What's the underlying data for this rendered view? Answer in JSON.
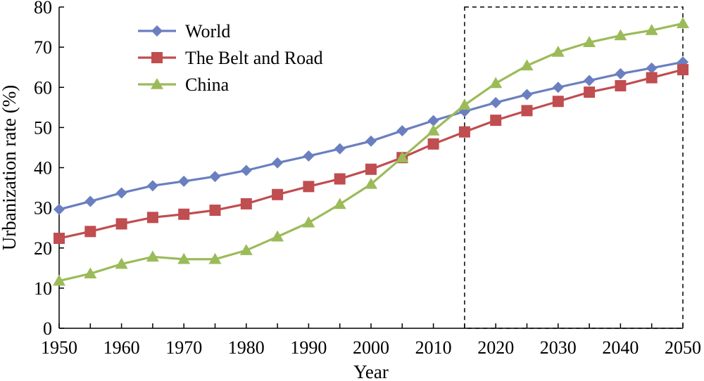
{
  "chart_data": {
    "type": "line",
    "title": "",
    "xlabel": "Year",
    "ylabel": "Urbanization rate (%)",
    "x": [
      1950,
      1955,
      1960,
      1965,
      1970,
      1975,
      1980,
      1985,
      1990,
      1995,
      2000,
      2005,
      2010,
      2015,
      2020,
      2025,
      2030,
      2035,
      2040,
      2045,
      2050
    ],
    "xlim": [
      1950,
      2050
    ],
    "ylim": [
      0,
      80
    ],
    "xticks": [
      1950,
      1960,
      1970,
      1980,
      1990,
      2000,
      2010,
      2020,
      2030,
      2040,
      2050
    ],
    "yticks": [
      0,
      10,
      20,
      30,
      40,
      50,
      60,
      70,
      80
    ],
    "grid": false,
    "legend_position": "top-left",
    "series": [
      {
        "name": "World",
        "color": "#6a7fc0",
        "marker": "diamond",
        "values": [
          29.6,
          31.6,
          33.7,
          35.5,
          36.6,
          37.8,
          39.3,
          41.2,
          42.9,
          44.7,
          46.6,
          49.2,
          51.7,
          54.0,
          56.2,
          58.2,
          60.0,
          61.7,
          63.4,
          64.8,
          66.3
        ]
      },
      {
        "name": "The Belt and Road",
        "color": "#c04d50",
        "marker": "square",
        "values": [
          22.4,
          24.1,
          26.0,
          27.6,
          28.4,
          29.4,
          31.0,
          33.3,
          35.3,
          37.2,
          39.6,
          42.5,
          45.9,
          48.9,
          51.8,
          54.2,
          56.5,
          58.8,
          60.4,
          62.4,
          64.4
        ]
      },
      {
        "name": "China",
        "color": "#9bbb59",
        "marker": "triangle",
        "values": [
          11.8,
          13.6,
          16.0,
          17.8,
          17.2,
          17.2,
          19.4,
          22.8,
          26.3,
          30.9,
          35.9,
          42.5,
          49.2,
          55.6,
          61.0,
          65.4,
          68.8,
          71.2,
          72.9,
          74.2,
          75.9
        ]
      }
    ],
    "highlight_box": {
      "x_range": [
        2015,
        2050
      ],
      "y_range": [
        0,
        80
      ],
      "style": "dashed"
    }
  }
}
